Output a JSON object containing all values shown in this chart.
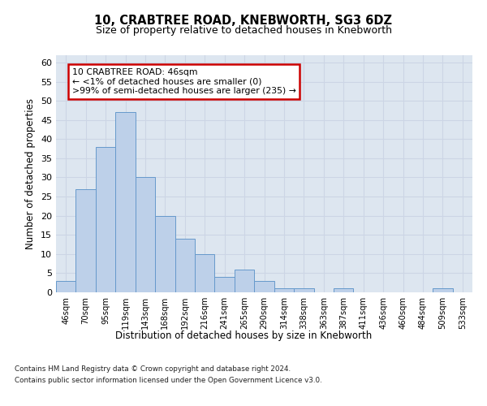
{
  "title1": "10, CRABTREE ROAD, KNEBWORTH, SG3 6DZ",
  "title2": "Size of property relative to detached houses in Knebworth",
  "xlabel": "Distribution of detached houses by size in Knebworth",
  "ylabel": "Number of detached properties",
  "categories": [
    "46sqm",
    "70sqm",
    "95sqm",
    "119sqm",
    "143sqm",
    "168sqm",
    "192sqm",
    "216sqm",
    "241sqm",
    "265sqm",
    "290sqm",
    "314sqm",
    "338sqm",
    "363sqm",
    "387sqm",
    "411sqm",
    "436sqm",
    "460sqm",
    "484sqm",
    "509sqm",
    "533sqm"
  ],
  "values": [
    3,
    27,
    38,
    47,
    30,
    20,
    14,
    10,
    4,
    6,
    3,
    1,
    1,
    0,
    1,
    0,
    0,
    0,
    0,
    1,
    0
  ],
  "bar_color": "#bdd0e9",
  "bar_edge_color": "#6699cc",
  "annotation_text_line1": "10 CRABTREE ROAD: 46sqm",
  "annotation_text_line2": "← <1% of detached houses are smaller (0)",
  "annotation_text_line3": ">99% of semi-detached houses are larger (235) →",
  "ann_border_color": "#cc0000",
  "ann_bg_color": "#ffffff",
  "ylim": [
    0,
    62
  ],
  "yticks": [
    0,
    5,
    10,
    15,
    20,
    25,
    30,
    35,
    40,
    45,
    50,
    55,
    60
  ],
  "grid_color": "#ccd5e5",
  "background_color": "#dde6f0",
  "footer_line1": "Contains HM Land Registry data © Crown copyright and database right 2024.",
  "footer_line2": "Contains public sector information licensed under the Open Government Licence v3.0."
}
